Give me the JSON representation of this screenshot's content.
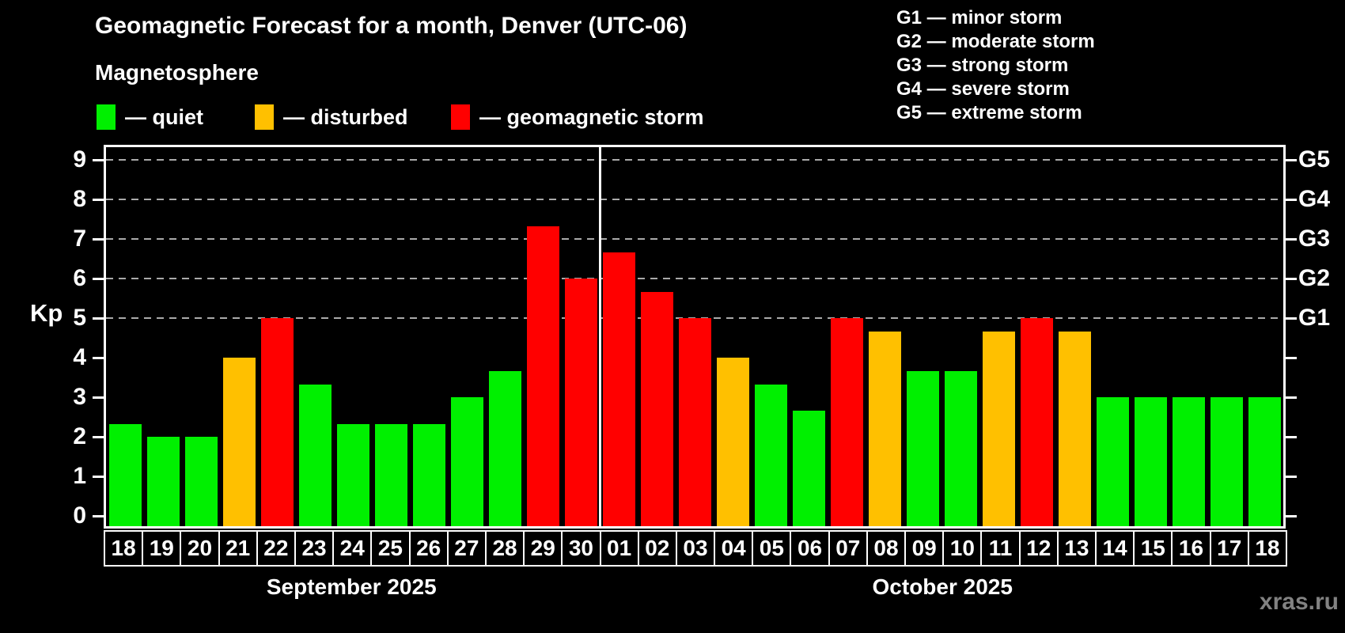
{
  "title": "Geomagnetic Forecast for a month, Denver (UTC-06)",
  "subtitle": "Magnetosphere",
  "status_legend": [
    {
      "status": "quiet",
      "label": "— quiet",
      "color": "#00f000"
    },
    {
      "status": "disturbed",
      "label": "— disturbed",
      "color": "#ffc000"
    },
    {
      "status": "storm",
      "label": "— geomagnetic storm",
      "color": "#ff0000"
    }
  ],
  "g_scale_legend": [
    "G1 — minor storm",
    "G2 — moderate storm",
    "G3 — strong storm",
    "G4 — severe storm",
    "G5 — extreme storm"
  ],
  "watermark": "xras.ru",
  "chart_data": {
    "type": "bar",
    "title": "Geomagnetic Forecast for a month, Denver (UTC-06)",
    "ylabel": "Kp",
    "ylim": [
      -0.33,
      9.4
    ],
    "y_ticks": [
      0,
      1,
      2,
      3,
      4,
      5,
      6,
      7,
      8,
      9
    ],
    "grid": true,
    "gridlines_at": [
      5,
      6,
      7,
      8,
      9
    ],
    "right_axis": [
      {
        "label": "G1",
        "value": 5
      },
      {
        "label": "G2",
        "value": 6
      },
      {
        "label": "G3",
        "value": 7
      },
      {
        "label": "G4",
        "value": 8
      },
      {
        "label": "G5",
        "value": 9
      }
    ],
    "months": [
      {
        "label": "September 2025",
        "days": 13
      },
      {
        "label": "October 2025",
        "days": 18
      }
    ],
    "categories": [
      "18",
      "19",
      "20",
      "21",
      "22",
      "23",
      "24",
      "25",
      "26",
      "27",
      "28",
      "29",
      "30",
      "01",
      "02",
      "03",
      "04",
      "05",
      "06",
      "07",
      "08",
      "09",
      "10",
      "11",
      "12",
      "13",
      "14",
      "15",
      "16",
      "17",
      "18"
    ],
    "values": [
      2.33,
      2,
      2,
      4,
      5,
      3.33,
      2.33,
      2.33,
      2.33,
      3,
      3.67,
      7.33,
      6,
      6.67,
      5.67,
      5,
      4,
      3.33,
      2.67,
      5,
      4.67,
      3.67,
      3.67,
      4.67,
      5,
      4.67,
      3,
      3,
      3,
      3,
      3
    ],
    "statuses": [
      "quiet",
      "quiet",
      "quiet",
      "disturbed",
      "storm",
      "quiet",
      "quiet",
      "quiet",
      "quiet",
      "quiet",
      "quiet",
      "storm",
      "storm",
      "storm",
      "storm",
      "storm",
      "disturbed",
      "quiet",
      "quiet",
      "storm",
      "disturbed",
      "quiet",
      "quiet",
      "disturbed",
      "storm",
      "disturbed",
      "quiet",
      "quiet",
      "quiet",
      "quiet",
      "quiet"
    ],
    "colors": {
      "quiet": "#00f000",
      "disturbed": "#ffc000",
      "storm": "#ff0000"
    }
  }
}
